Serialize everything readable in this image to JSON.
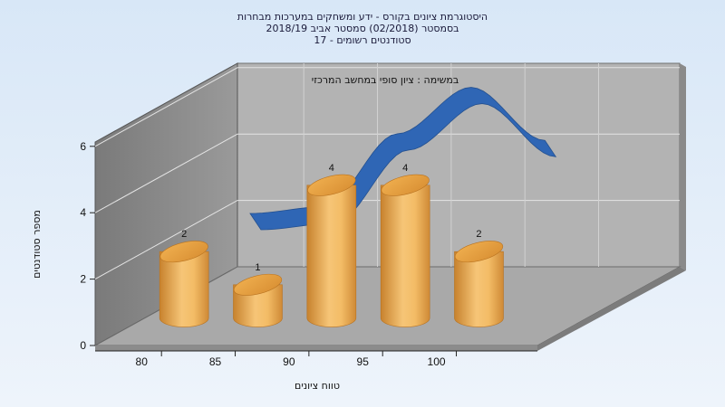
{
  "chart_data": {
    "type": "bar",
    "title_lines": [
      "היסטוגרמת ציונים בקורס - ידע ומשחקים במערכות מבחרות",
      "בסמסטר  (02/2018)  סמסטר אביב 2018/19",
      "סטודנטים רשומים - 17"
    ],
    "annotation": "במשימה : ציון סופי במחשב המרכזי",
    "xlabel": "טווח ציונים",
    "ylabel": "מספר סטודנטים",
    "x_ticks": [
      80,
      85,
      90,
      95,
      100
    ],
    "y_ticks": [
      0,
      2,
      4,
      6
    ],
    "ylim": [
      0,
      6
    ],
    "bars": [
      {
        "x": 80,
        "value": 2
      },
      {
        "x": 85,
        "value": 1
      },
      {
        "x": 90,
        "value": 4
      },
      {
        "x": 95,
        "value": 4
      },
      {
        "x": 100,
        "value": 2
      }
    ],
    "curve": {
      "x": [
        80,
        85,
        90,
        95,
        100
      ],
      "y": [
        2.2,
        2.4,
        4.6,
        6.0,
        4.4
      ]
    },
    "colors": {
      "bar": "#e8a24a",
      "curve": "#2f66b5",
      "wall": "#b0b0b0",
      "floor": "#a8a8a8",
      "background": "#dce9f7"
    },
    "grid": true,
    "style": "3d"
  }
}
